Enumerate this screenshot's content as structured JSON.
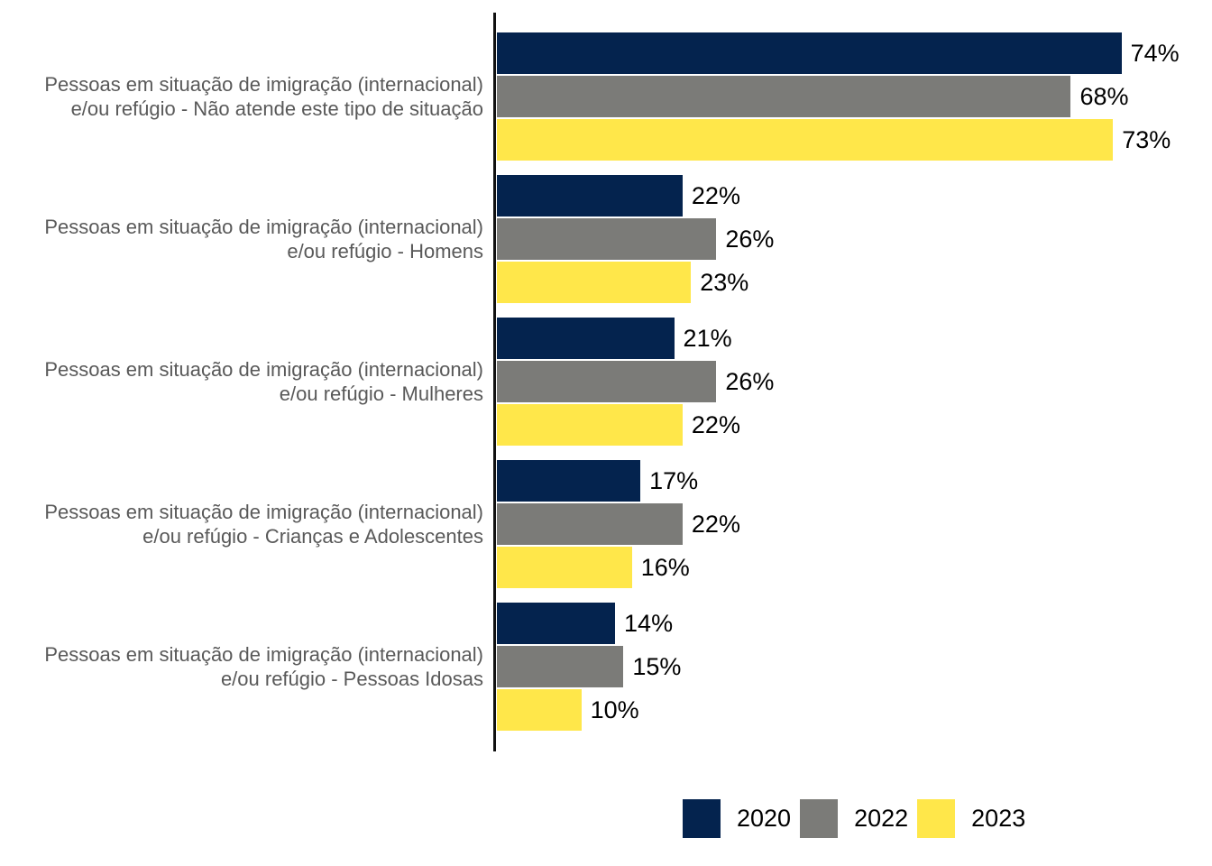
{
  "chart_data": {
    "type": "bar",
    "orientation": "horizontal",
    "title": "",
    "xlabel": "",
    "ylabel": "",
    "value_suffix": "%",
    "xlim": [
      0,
      85
    ],
    "grid": false,
    "legend_position": "bottom-right",
    "categories": [
      "Pessoas em situação de imigração (internacional) e/ou refúgio - Não atende este tipo de situação",
      "Pessoas em situação de imigração (internacional) e/ou refúgio - Homens",
      "Pessoas em situação de imigração (internacional) e/ou refúgio - Mulheres",
      "Pessoas em situação de imigração (internacional) e/ou refúgio - Crianças e Adolescentes",
      "Pessoas em situação de imigração (internacional) e/ou refúgio - Pessoas Idosas"
    ],
    "category_label_lines": [
      [
        "Pessoas em situação de imigração (internacional)",
        "e/ou refúgio - Não atende este tipo de situação"
      ],
      [
        "Pessoas em situação de imigração (internacional)",
        "e/ou refúgio - Homens"
      ],
      [
        "Pessoas em situação de imigração (internacional)",
        "e/ou refúgio - Mulheres"
      ],
      [
        "Pessoas em situação de imigração (internacional)",
        "e/ou refúgio - Crianças e Adolescentes"
      ],
      [
        "Pessoas em situação de imigração (internacional)",
        "e/ou refúgio - Pessoas Idosas"
      ]
    ],
    "series": [
      {
        "name": "2020",
        "color": "#04234e",
        "values": [
          74,
          22,
          21,
          17,
          14
        ]
      },
      {
        "name": "2022",
        "color": "#7b7b78",
        "values": [
          68,
          26,
          26,
          22,
          15
        ]
      },
      {
        "name": "2023",
        "color": "#ffe74a",
        "values": [
          73,
          23,
          22,
          16,
          10
        ]
      }
    ],
    "value_labels": [
      [
        "74%",
        "68%",
        "73%"
      ],
      [
        "22%",
        "26%",
        "23%"
      ],
      [
        "21%",
        "26%",
        "22%"
      ],
      [
        "17%",
        "22%",
        "16%"
      ],
      [
        "14%",
        "15%",
        "10%"
      ]
    ]
  },
  "legend": {
    "items": [
      {
        "label": "2020",
        "color": "#04234e"
      },
      {
        "label": "2022",
        "color": "#7b7b78"
      },
      {
        "label": "2023",
        "color": "#ffe74a"
      }
    ]
  },
  "colors": {
    "axis": "#111111",
    "category_label_text": "#595959",
    "value_label_text": "#000000",
    "background": "#ffffff"
  }
}
